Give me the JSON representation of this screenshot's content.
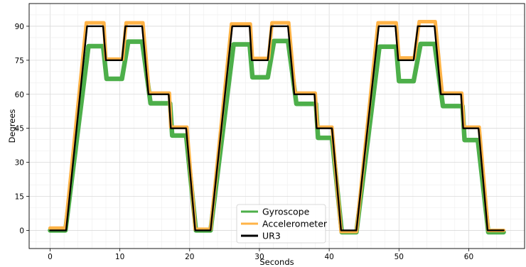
{
  "chart_data": {
    "type": "line",
    "title": "",
    "xlabel": "Seconds",
    "ylabel": "Degrees",
    "xlim": [
      -3,
      68
    ],
    "ylim": [
      -8,
      100
    ],
    "xticks": [
      0,
      10,
      20,
      30,
      40,
      50,
      60
    ],
    "yticks": [
      0,
      15,
      30,
      45,
      60,
      75,
      90
    ],
    "grid": true,
    "legend_position": "bottom-center",
    "series": [
      {
        "name": "Gyroscope",
        "color": "#4daf4a",
        "x": [
          0,
          2.2,
          5.5,
          7.6,
          8.1,
          10.3,
          11.2,
          13.2,
          14.4,
          17.2,
          17.5,
          19.5,
          20.9,
          23.0,
          26.3,
          28.6,
          29.0,
          31.2,
          32.1,
          34.1,
          35.3,
          38.1,
          38.4,
          40.4,
          41.8,
          43.9,
          47.2,
          49.6,
          50.0,
          52.1,
          53.1,
          55.1,
          56.3,
          59.1,
          59.4,
          61.3,
          62.8,
          65.0
        ],
        "y": [
          0,
          0,
          81.2,
          81.2,
          66.8,
          66.8,
          83.2,
          83.2,
          56.0,
          56.0,
          41.8,
          41.8,
          0,
          0,
          82.0,
          82.0,
          67.5,
          67.5,
          83.5,
          83.5,
          55.8,
          55.8,
          40.8,
          40.8,
          -0.8,
          -0.8,
          81.0,
          81.0,
          65.8,
          65.8,
          82.2,
          82.2,
          54.8,
          54.8,
          39.8,
          39.8,
          -0.8,
          -0.8
        ]
      },
      {
        "name": "Accelerometer",
        "color": "#ffb347",
        "x": [
          0,
          2.2,
          5.2,
          7.7,
          8.0,
          10.4,
          10.9,
          13.3,
          14.2,
          17.1,
          17.3,
          19.6,
          20.8,
          23.0,
          26.0,
          28.7,
          29.0,
          31.3,
          31.8,
          34.2,
          35.1,
          38.0,
          38.3,
          40.4,
          41.7,
          43.9,
          47.0,
          49.6,
          50.0,
          52.2,
          52.9,
          55.2,
          56.2,
          59.0,
          59.3,
          61.5,
          62.8,
          65.0
        ],
        "y": [
          1.0,
          1.0,
          91.5,
          91.5,
          75.5,
          75.5,
          91.5,
          91.5,
          60.5,
          60.5,
          45.5,
          45.5,
          0.5,
          0.5,
          91.0,
          91.0,
          75.8,
          75.8,
          91.5,
          91.5,
          60.5,
          60.5,
          45.5,
          45.5,
          -0.5,
          -0.5,
          91.5,
          91.5,
          76.0,
          76.0,
          92.0,
          92.0,
          60.5,
          60.5,
          45.5,
          45.5,
          0,
          0
        ]
      },
      {
        "name": "UR3",
        "color": "#000000",
        "x": [
          0,
          2.3,
          5.3,
          7.6,
          8.0,
          10.3,
          10.8,
          13.2,
          14.1,
          17.0,
          17.3,
          19.5,
          20.8,
          23.0,
          26.1,
          28.6,
          28.9,
          31.2,
          31.7,
          34.1,
          35.0,
          37.9,
          38.2,
          40.4,
          41.7,
          43.9,
          47.1,
          49.5,
          49.9,
          52.1,
          52.7,
          55.1,
          56.0,
          58.9,
          59.2,
          61.4,
          62.7,
          65.0
        ],
        "y": [
          0,
          0,
          90,
          90,
          75,
          75,
          90,
          90,
          60,
          60,
          45,
          45,
          0,
          0,
          90,
          90,
          75,
          75,
          90,
          90,
          60,
          60,
          45,
          45,
          0,
          0,
          90,
          90,
          75,
          75,
          90,
          90,
          60,
          60,
          45,
          45,
          0,
          0
        ]
      }
    ]
  }
}
